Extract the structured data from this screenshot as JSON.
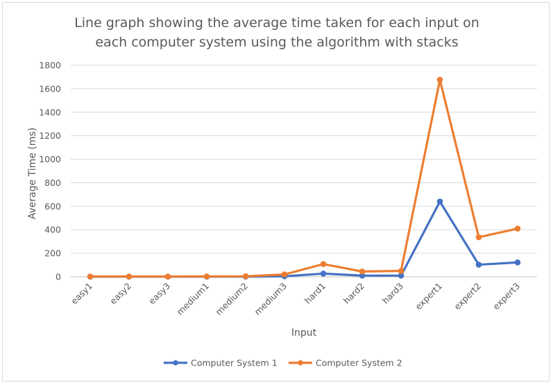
{
  "chart_data": {
    "type": "line",
    "title_lines": [
      "Line graph showing the average time taken for each input on",
      "each computer system using the algorithm with stacks"
    ],
    "xlabel": "Input",
    "ylabel": "Average Time (ms)",
    "categories": [
      "easy1",
      "easy2",
      "easy3",
      "medium1",
      "medium2",
      "medium3",
      "hard1",
      "hard2",
      "hard3",
      "expert1",
      "expert2",
      "expert3"
    ],
    "ylim": [
      0,
      1800
    ],
    "yticks": [
      0,
      200,
      400,
      600,
      800,
      1000,
      1200,
      1400,
      1600,
      1800
    ],
    "grid": true,
    "legend_position": "bottom",
    "series": [
      {
        "name": "Computer System 1",
        "color": "#4472c4",
        "values": [
          1,
          1,
          1,
          1,
          1,
          4,
          27,
          10,
          10,
          640,
          103,
          122
        ]
      },
      {
        "name": "Computer System 2",
        "color": "#ed7d31",
        "values": [
          2,
          2,
          2,
          3,
          4,
          20,
          108,
          45,
          50,
          1676,
          337,
          410
        ]
      }
    ]
  }
}
